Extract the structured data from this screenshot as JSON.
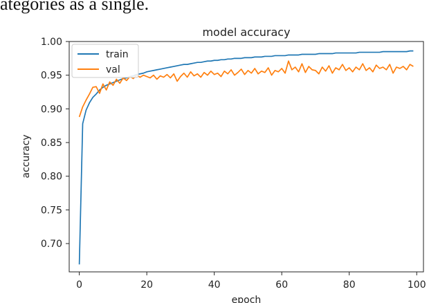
{
  "page": {
    "top_text": "ategories as a single."
  },
  "chart_data": {
    "type": "line",
    "title": "model accuracy",
    "xlabel": "epoch",
    "ylabel": "accuracy",
    "xlim": [
      -3,
      102
    ],
    "ylim": [
      0.658,
      1.0
    ],
    "xticks": [
      0,
      20,
      40,
      60,
      80,
      100
    ],
    "yticks": [
      0.7,
      0.75,
      0.8,
      0.85,
      0.9,
      0.95,
      1.0
    ],
    "ytick_labels": [
      "0.70",
      "0.75",
      "0.80",
      "0.85",
      "0.90",
      "0.95",
      "1.00"
    ],
    "grid": false,
    "legend_position": "upper-left",
    "colors": {
      "train": "#1f77b4",
      "val": "#ff7f0e"
    },
    "series": [
      {
        "name": "train",
        "color": "#1f77b4",
        "x": [
          0,
          1,
          2,
          3,
          4,
          5,
          6,
          7,
          8,
          9,
          10,
          11,
          12,
          13,
          14,
          15,
          16,
          17,
          18,
          19,
          20,
          21,
          22,
          23,
          24,
          25,
          26,
          27,
          28,
          29,
          30,
          31,
          32,
          33,
          34,
          35,
          36,
          37,
          38,
          39,
          40,
          41,
          42,
          43,
          44,
          45,
          46,
          47,
          48,
          49,
          50,
          51,
          52,
          53,
          54,
          55,
          56,
          57,
          58,
          59,
          60,
          61,
          62,
          63,
          64,
          65,
          66,
          67,
          68,
          69,
          70,
          71,
          72,
          73,
          74,
          75,
          75,
          76,
          77,
          78,
          79,
          80,
          81,
          82,
          83,
          84,
          85,
          86,
          87,
          88,
          89,
          90,
          91,
          92,
          93,
          94,
          95,
          96,
          97,
          98,
          99
        ],
        "values": [
          0.669,
          0.878,
          0.898,
          0.909,
          0.917,
          0.922,
          0.928,
          0.932,
          0.935,
          0.937,
          0.939,
          0.941,
          0.943,
          0.945,
          0.946,
          0.948,
          0.949,
          0.951,
          0.952,
          0.953,
          0.955,
          0.956,
          0.957,
          0.958,
          0.959,
          0.96,
          0.961,
          0.962,
          0.963,
          0.964,
          0.965,
          0.966,
          0.966,
          0.967,
          0.968,
          0.969,
          0.969,
          0.97,
          0.971,
          0.971,
          0.972,
          0.972,
          0.973,
          0.973,
          0.974,
          0.974,
          0.975,
          0.975,
          0.975,
          0.976,
          0.976,
          0.976,
          0.977,
          0.977,
          0.977,
          0.978,
          0.978,
          0.978,
          0.979,
          0.979,
          0.979,
          0.979,
          0.98,
          0.98,
          0.98,
          0.98,
          0.981,
          0.981,
          0.981,
          0.981,
          0.981,
          0.982,
          0.982,
          0.982,
          0.982,
          0.982,
          0.982,
          0.983,
          0.983,
          0.983,
          0.983,
          0.983,
          0.983,
          0.983,
          0.984,
          0.984,
          0.984,
          0.984,
          0.984,
          0.984,
          0.984,
          0.985,
          0.985,
          0.985,
          0.985,
          0.985,
          0.985,
          0.985,
          0.985,
          0.986,
          0.986
        ]
      },
      {
        "name": "val",
        "color": "#ff7f0e",
        "x": [
          0,
          1,
          2,
          3,
          4,
          5,
          6,
          7,
          8,
          9,
          10,
          11,
          12,
          13,
          14,
          15,
          16,
          17,
          18,
          19,
          20,
          21,
          22,
          23,
          24,
          25,
          26,
          27,
          28,
          29,
          30,
          31,
          32,
          33,
          34,
          35,
          36,
          37,
          38,
          39,
          40,
          41,
          42,
          43,
          44,
          45,
          46,
          47,
          48,
          49,
          50,
          51,
          52,
          53,
          54,
          55,
          56,
          57,
          58,
          59,
          60,
          61,
          62,
          63,
          64,
          65,
          66,
          67,
          68,
          69,
          70,
          71,
          72,
          73,
          74,
          75,
          76,
          77,
          78,
          79,
          80,
          81,
          82,
          83,
          84,
          85,
          86,
          87,
          88,
          89,
          90,
          91,
          92,
          93,
          94,
          95,
          96,
          97,
          98,
          99
        ],
        "values": [
          0.888,
          0.903,
          0.913,
          0.922,
          0.932,
          0.933,
          0.923,
          0.937,
          0.928,
          0.94,
          0.935,
          0.944,
          0.938,
          0.946,
          0.942,
          0.948,
          0.945,
          0.95,
          0.947,
          0.95,
          0.948,
          0.946,
          0.95,
          0.944,
          0.949,
          0.947,
          0.951,
          0.946,
          0.952,
          0.941,
          0.948,
          0.953,
          0.947,
          0.955,
          0.949,
          0.952,
          0.947,
          0.954,
          0.95,
          0.956,
          0.951,
          0.953,
          0.948,
          0.956,
          0.952,
          0.958,
          0.95,
          0.954,
          0.959,
          0.951,
          0.957,
          0.953,
          0.96,
          0.952,
          0.956,
          0.954,
          0.961,
          0.95,
          0.957,
          0.955,
          0.96,
          0.953,
          0.971,
          0.958,
          0.962,
          0.955,
          0.967,
          0.954,
          0.963,
          0.958,
          0.957,
          0.952,
          0.962,
          0.956,
          0.964,
          0.953,
          0.961,
          0.958,
          0.966,
          0.957,
          0.961,
          0.955,
          0.962,
          0.958,
          0.967,
          0.957,
          0.961,
          0.955,
          0.965,
          0.96,
          0.962,
          0.958,
          0.966,
          0.953,
          0.962,
          0.96,
          0.963,
          0.958,
          0.966,
          0.963
        ]
      }
    ]
  }
}
